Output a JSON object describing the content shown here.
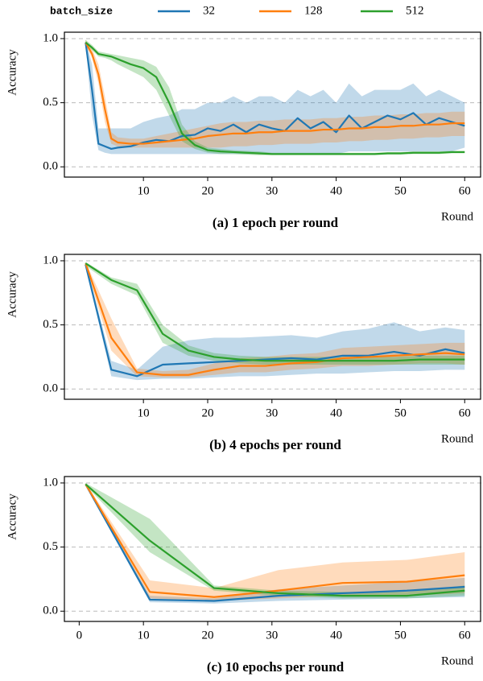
{
  "chart_data": [
    {
      "type": "line",
      "title": "(a) 1 epoch per round",
      "x_label": "Round",
      "y_label": "Accuracy",
      "legend_title": "batch_size",
      "x": [
        1,
        2,
        3,
        4,
        5,
        6,
        8,
        10,
        12,
        14,
        16,
        18,
        20,
        22,
        24,
        26,
        28,
        30,
        32,
        34,
        36,
        38,
        40,
        42,
        44,
        46,
        48,
        50,
        52,
        54,
        56,
        58,
        60
      ],
      "xlim": [
        -2.3,
        62.6
      ],
      "xticks": [
        10,
        20,
        30,
        40,
        50,
        60
      ],
      "ylim": [
        -0.08,
        1.05
      ],
      "yticks": [
        {
          "value": 0,
          "label": "0.0"
        },
        0.5,
        {
          "value": 1,
          "label": "1.0"
        }
      ],
      "grid": true,
      "series": [
        {
          "name": "32",
          "color": "#1f77b4",
          "values": [
            0.97,
            0.6,
            0.18,
            0.16,
            0.14,
            0.15,
            0.16,
            0.19,
            0.21,
            0.2,
            0.24,
            0.25,
            0.3,
            0.28,
            0.33,
            0.27,
            0.33,
            0.3,
            0.28,
            0.38,
            0.3,
            0.35,
            0.27,
            0.4,
            0.3,
            0.35,
            0.4,
            0.37,
            0.42,
            0.33,
            0.38,
            0.35,
            0.32
          ],
          "lower": [
            0.95,
            0.4,
            0.13,
            0.11,
            0.1,
            0.1,
            0.1,
            0.1,
            0.1,
            0.1,
            0.1,
            0.1,
            0.1,
            0.1,
            0.1,
            0.1,
            0.1,
            0.1,
            0.1,
            0.1,
            0.1,
            0.1,
            0.1,
            0.12,
            0.12,
            0.12,
            0.12,
            0.12,
            0.12,
            0.12,
            0.12,
            0.12,
            0.15
          ],
          "upper": [
            0.99,
            0.8,
            0.3,
            0.3,
            0.3,
            0.3,
            0.3,
            0.35,
            0.38,
            0.4,
            0.45,
            0.45,
            0.5,
            0.5,
            0.55,
            0.5,
            0.55,
            0.55,
            0.5,
            0.6,
            0.55,
            0.6,
            0.5,
            0.65,
            0.55,
            0.6,
            0.6,
            0.6,
            0.65,
            0.55,
            0.6,
            0.55,
            0.5
          ]
        },
        {
          "name": "128",
          "color": "#ff7f0e",
          "values": [
            0.97,
            0.88,
            0.72,
            0.45,
            0.22,
            0.19,
            0.18,
            0.18,
            0.19,
            0.2,
            0.21,
            0.22,
            0.24,
            0.25,
            0.26,
            0.26,
            0.27,
            0.27,
            0.28,
            0.28,
            0.28,
            0.29,
            0.29,
            0.3,
            0.3,
            0.31,
            0.31,
            0.32,
            0.32,
            0.33,
            0.33,
            0.34,
            0.34
          ],
          "lower": [
            0.95,
            0.85,
            0.65,
            0.35,
            0.18,
            0.16,
            0.15,
            0.15,
            0.15,
            0.15,
            0.15,
            0.15,
            0.15,
            0.15,
            0.16,
            0.16,
            0.17,
            0.17,
            0.18,
            0.18,
            0.18,
            0.19,
            0.19,
            0.2,
            0.2,
            0.21,
            0.21,
            0.22,
            0.22,
            0.23,
            0.23,
            0.24,
            0.24
          ],
          "upper": [
            0.99,
            0.92,
            0.8,
            0.55,
            0.27,
            0.23,
            0.22,
            0.22,
            0.24,
            0.26,
            0.28,
            0.3,
            0.32,
            0.34,
            0.35,
            0.35,
            0.36,
            0.36,
            0.37,
            0.37,
            0.37,
            0.38,
            0.38,
            0.39,
            0.39,
            0.4,
            0.4,
            0.41,
            0.41,
            0.42,
            0.42,
            0.43,
            0.43
          ]
        },
        {
          "name": "512",
          "color": "#2ca02c",
          "values": [
            0.97,
            0.93,
            0.88,
            0.87,
            0.86,
            0.84,
            0.8,
            0.77,
            0.7,
            0.5,
            0.26,
            0.17,
            0.13,
            0.12,
            0.115,
            0.11,
            0.105,
            0.1,
            0.1,
            0.1,
            0.1,
            0.1,
            0.1,
            0.1,
            0.1,
            0.1,
            0.105,
            0.105,
            0.11,
            0.11,
            0.11,
            0.115,
            0.115
          ],
          "lower": [
            0.95,
            0.91,
            0.86,
            0.85,
            0.83,
            0.8,
            0.75,
            0.7,
            0.6,
            0.4,
            0.2,
            0.14,
            0.11,
            0.1,
            0.1,
            0.095,
            0.09,
            0.09,
            0.09,
            0.09,
            0.09,
            0.09,
            0.09,
            0.09,
            0.09,
            0.09,
            0.095,
            0.095,
            0.1,
            0.1,
            0.1,
            0.105,
            0.105
          ],
          "upper": [
            0.99,
            0.95,
            0.9,
            0.89,
            0.88,
            0.87,
            0.85,
            0.83,
            0.78,
            0.62,
            0.33,
            0.2,
            0.15,
            0.14,
            0.13,
            0.125,
            0.12,
            0.11,
            0.11,
            0.11,
            0.11,
            0.11,
            0.11,
            0.11,
            0.11,
            0.11,
            0.115,
            0.115,
            0.12,
            0.12,
            0.12,
            0.125,
            0.125
          ]
        }
      ]
    },
    {
      "type": "line",
      "title": "(b) 4 epochs per round",
      "x_label": "Round",
      "y_label": "Accuracy",
      "x": [
        1,
        5,
        9,
        13,
        17,
        21,
        25,
        29,
        33,
        37,
        41,
        45,
        49,
        53,
        57,
        60
      ],
      "xlim": [
        -2.3,
        62.6
      ],
      "xticks": [
        10,
        20,
        30,
        40,
        50,
        60
      ],
      "ylim": [
        -0.08,
        1.05
      ],
      "yticks": [
        {
          "value": 0,
          "label": "0.0"
        },
        0.5,
        {
          "value": 1,
          "label": "1.0"
        }
      ],
      "grid": true,
      "series": [
        {
          "name": "32",
          "color": "#1f77b4",
          "values": [
            0.97,
            0.15,
            0.1,
            0.19,
            0.2,
            0.21,
            0.22,
            0.23,
            0.24,
            0.23,
            0.26,
            0.26,
            0.29,
            0.26,
            0.31,
            0.28
          ],
          "lower": [
            0.95,
            0.1,
            0.07,
            0.08,
            0.08,
            0.09,
            0.1,
            0.1,
            0.11,
            0.12,
            0.12,
            0.13,
            0.14,
            0.14,
            0.15,
            0.15
          ],
          "upper": [
            0.99,
            0.22,
            0.15,
            0.33,
            0.38,
            0.4,
            0.4,
            0.41,
            0.42,
            0.4,
            0.45,
            0.47,
            0.52,
            0.45,
            0.48,
            0.46
          ]
        },
        {
          "name": "128",
          "color": "#ff7f0e",
          "values": [
            0.98,
            0.4,
            0.13,
            0.11,
            0.11,
            0.15,
            0.18,
            0.18,
            0.2,
            0.21,
            0.24,
            0.25,
            0.26,
            0.27,
            0.28,
            0.27
          ],
          "lower": [
            0.96,
            0.3,
            0.1,
            0.09,
            0.09,
            0.11,
            0.13,
            0.13,
            0.15,
            0.16,
            0.18,
            0.18,
            0.19,
            0.2,
            0.2,
            0.19
          ],
          "upper": [
            0.99,
            0.55,
            0.16,
            0.14,
            0.15,
            0.2,
            0.24,
            0.25,
            0.27,
            0.28,
            0.32,
            0.33,
            0.34,
            0.35,
            0.36,
            0.36
          ]
        },
        {
          "name": "512",
          "color": "#2ca02c",
          "values": [
            0.98,
            0.85,
            0.77,
            0.43,
            0.3,
            0.25,
            0.23,
            0.22,
            0.22,
            0.22,
            0.22,
            0.22,
            0.22,
            0.23,
            0.23,
            0.23
          ],
          "lower": [
            0.96,
            0.82,
            0.73,
            0.36,
            0.26,
            0.22,
            0.2,
            0.19,
            0.19,
            0.19,
            0.19,
            0.19,
            0.19,
            0.19,
            0.19,
            0.19
          ],
          "upper": [
            0.99,
            0.87,
            0.82,
            0.5,
            0.34,
            0.28,
            0.26,
            0.25,
            0.25,
            0.25,
            0.25,
            0.25,
            0.25,
            0.26,
            0.26,
            0.26
          ]
        }
      ]
    },
    {
      "type": "line",
      "title": "(c) 10 epochs per round",
      "x_label": "Round",
      "y_label": "Accuracy",
      "x": [
        1,
        11,
        21,
        31,
        41,
        51,
        60
      ],
      "xlim": [
        -2.3,
        62.6
      ],
      "xticks": [
        0,
        10,
        20,
        30,
        40,
        50,
        60
      ],
      "ylim": [
        -0.08,
        1.05
      ],
      "yticks": [
        {
          "value": 0,
          "label": "0.0"
        },
        0.5,
        {
          "value": 1,
          "label": "1.0"
        }
      ],
      "grid": true,
      "series": [
        {
          "name": "32",
          "color": "#1f77b4",
          "values": [
            0.99,
            0.09,
            0.08,
            0.12,
            0.14,
            0.16,
            0.19
          ],
          "lower": [
            0.98,
            0.07,
            0.06,
            0.08,
            0.09,
            0.1,
            0.11
          ],
          "upper": [
            1.0,
            0.12,
            0.1,
            0.17,
            0.2,
            0.23,
            0.26
          ]
        },
        {
          "name": "128",
          "color": "#ff7f0e",
          "values": [
            0.99,
            0.15,
            0.11,
            0.16,
            0.22,
            0.23,
            0.28
          ],
          "lower": [
            0.98,
            0.1,
            0.08,
            0.1,
            0.12,
            0.12,
            0.14
          ],
          "upper": [
            1.0,
            0.24,
            0.18,
            0.32,
            0.38,
            0.4,
            0.46
          ]
        },
        {
          "name": "512",
          "color": "#2ca02c",
          "values": [
            0.99,
            0.55,
            0.18,
            0.14,
            0.12,
            0.12,
            0.16
          ],
          "lower": [
            0.98,
            0.46,
            0.16,
            0.12,
            0.1,
            0.1,
            0.12
          ],
          "upper": [
            1.0,
            0.72,
            0.2,
            0.16,
            0.15,
            0.15,
            0.2
          ]
        }
      ]
    }
  ]
}
